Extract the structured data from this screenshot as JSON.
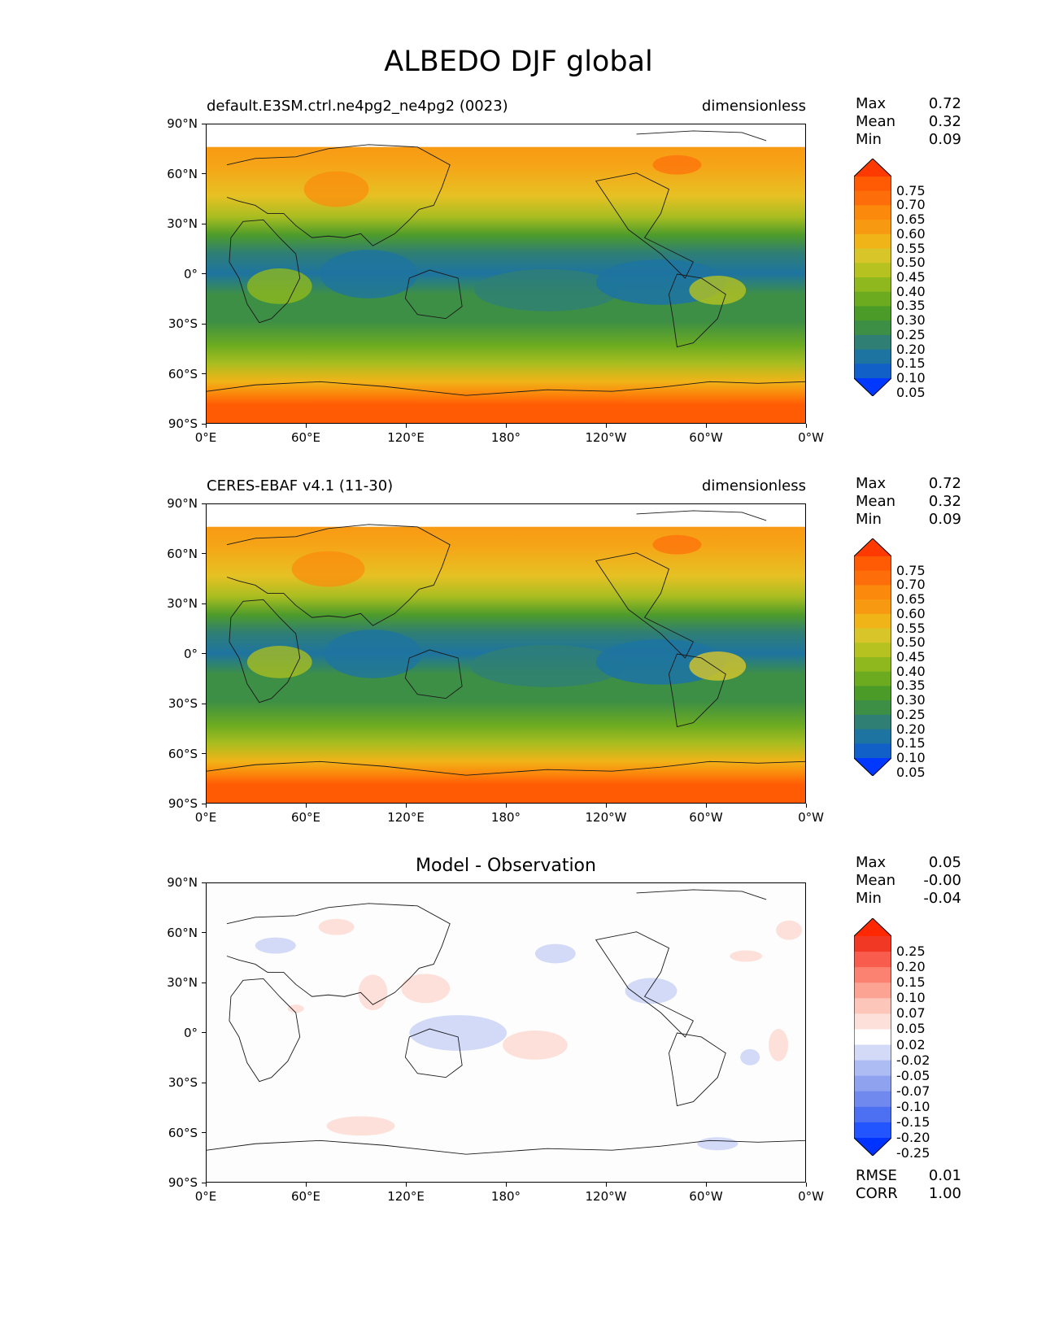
{
  "figure": {
    "title": "ALBEDO DJF global"
  },
  "axes": {
    "x_ticks": [
      "0°E",
      "60°E",
      "120°E",
      "180°",
      "120°W",
      "60°W",
      "0°W"
    ],
    "y_ticks": [
      "90°N",
      "60°N",
      "30°N",
      "0°",
      "30°S",
      "60°S",
      "90°S"
    ]
  },
  "panels": [
    {
      "left_title": "default.E3SM.ctrl.ne4pg2_ne4pg2 (0023)",
      "right_title": "dimensionless",
      "stats": [
        {
          "label": "Max",
          "value": "0.72"
        },
        {
          "label": "Mean",
          "value": "0.32"
        },
        {
          "label": "Min",
          "value": "0.09"
        }
      ],
      "colorbar_labels": [
        "0.75",
        "0.70",
        "0.65",
        "0.60",
        "0.55",
        "0.50",
        "0.45",
        "0.40",
        "0.35",
        "0.30",
        "0.25",
        "0.20",
        "0.15",
        "0.10",
        "0.05"
      ]
    },
    {
      "left_title": "CERES-EBAF v4.1 (11-30)",
      "right_title": "dimensionless",
      "stats": [
        {
          "label": "Max",
          "value": "0.72"
        },
        {
          "label": "Mean",
          "value": "0.32"
        },
        {
          "label": "Min",
          "value": "0.09"
        }
      ],
      "colorbar_labels": [
        "0.75",
        "0.70",
        "0.65",
        "0.60",
        "0.55",
        "0.50",
        "0.45",
        "0.40",
        "0.35",
        "0.30",
        "0.25",
        "0.20",
        "0.15",
        "0.10",
        "0.05"
      ]
    },
    {
      "center_title": "Model - Observation",
      "stats": [
        {
          "label": "Max",
          "value": "0.05"
        },
        {
          "label": "Mean",
          "value": "-0.00"
        },
        {
          "label": "Min",
          "value": "-0.04"
        }
      ],
      "colorbar_labels": [
        "0.25",
        "0.20",
        "0.15",
        "0.10",
        "0.07",
        "0.05",
        "0.02",
        "-0.02",
        "-0.05",
        "-0.07",
        "-0.10",
        "-0.15",
        "-0.20",
        "-0.25"
      ],
      "metrics": [
        {
          "label": "RMSE",
          "value": "0.01"
        },
        {
          "label": "CORR",
          "value": "1.00"
        }
      ]
    }
  ],
  "colors": {
    "albedo_scale": [
      "#0038ff",
      "#1060c8",
      "#1e74a0",
      "#2f7f74",
      "#3d8f45",
      "#4a9b28",
      "#6cab20",
      "#8fb81e",
      "#b5c220",
      "#d8c52a",
      "#f0b418",
      "#f79a12",
      "#fb8a0c",
      "#fd6e0a",
      "#ff5a04",
      "#ff3a00"
    ],
    "diff_scale": [
      "#0033ff",
      "#2255ff",
      "#4d70f2",
      "#6f89ef",
      "#8ea2f0",
      "#aebcf4",
      "#d2daf8",
      "#ffffff",
      "#fde0d9",
      "#fcc6bb",
      "#fca394",
      "#fb8270",
      "#f75c4c",
      "#f03824",
      "#ff2800"
    ]
  }
}
